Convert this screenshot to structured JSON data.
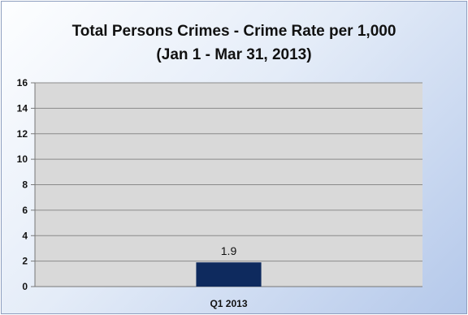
{
  "chart_data": {
    "type": "bar",
    "title": "Total Persons Crimes - Crime Rate per 1,000",
    "subtitle": "(Jan 1 - Mar 31, 2013)",
    "categories": [
      "Q1 2013"
    ],
    "values": [
      1.9
    ],
    "data_labels": [
      "1.9"
    ],
    "ylim": [
      0,
      16
    ],
    "yticks": [
      0,
      2,
      4,
      6,
      8,
      10,
      12,
      14,
      16
    ],
    "grid": true,
    "legend": "none",
    "colors": {
      "bar": "#0e2a5e",
      "plot_background": "#d9d9d9",
      "gridline": "#8a8a8a"
    }
  }
}
